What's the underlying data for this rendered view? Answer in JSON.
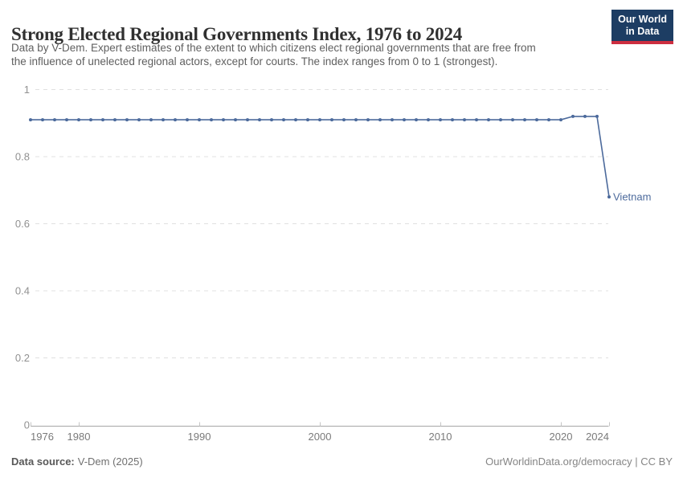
{
  "header": {
    "title": "Strong Elected Regional Governments Index, 1976 to 2024",
    "subtitle_line1": "Data by V-Dem. Expert estimates of the extent to which citizens elect regional governments that are free from",
    "subtitle_line2": "the influence of unelected regional actors, except for courts. The index ranges from 0 to 1 (strongest).",
    "logo_line1": "Our World",
    "logo_line2": "in Data"
  },
  "footer": {
    "source_label": "Data source:",
    "source_value": "V-Dem (2025)",
    "attribution": "OurWorldinData.org/democracy | CC BY"
  },
  "colors": {
    "series": "#4c6a9c",
    "grid": "#e0e0e0",
    "axis": "#a6a6a6",
    "tick": "#c6c6c6",
    "y_label": "#919191",
    "x_label": "#7a7a7a",
    "logo_bg": "#1d3d63",
    "logo_stripe": "#cd2e40"
  },
  "chart_data": {
    "type": "line",
    "title": "Strong Elected Regional Governments Index, 1976 to 2024",
    "xlabel": "",
    "ylabel": "",
    "xlim": [
      1976,
      2024
    ],
    "ylim": [
      0,
      1
    ],
    "yticks": [
      0,
      0.2,
      0.4,
      0.6,
      0.8,
      1
    ],
    "ytick_labels": [
      "0",
      "0.2",
      "0.4",
      "0.6",
      "0.8",
      "1"
    ],
    "xticks": [
      1976,
      1980,
      1990,
      2000,
      2010,
      2020,
      2024
    ],
    "grid": "horizontal-dashed",
    "legend_position": "end-of-line-label",
    "marker": "circle",
    "series": [
      {
        "name": "Vietnam",
        "color": "#4c6a9c",
        "x": [
          1976,
          1977,
          1978,
          1979,
          1980,
          1981,
          1982,
          1983,
          1984,
          1985,
          1986,
          1987,
          1988,
          1989,
          1990,
          1991,
          1992,
          1993,
          1994,
          1995,
          1996,
          1997,
          1998,
          1999,
          2000,
          2001,
          2002,
          2003,
          2004,
          2005,
          2006,
          2007,
          2008,
          2009,
          2010,
          2011,
          2012,
          2013,
          2014,
          2015,
          2016,
          2017,
          2018,
          2019,
          2020,
          2021,
          2022,
          2023,
          2024
        ],
        "values": [
          0.91,
          0.91,
          0.91,
          0.91,
          0.91,
          0.91,
          0.91,
          0.91,
          0.91,
          0.91,
          0.91,
          0.91,
          0.91,
          0.91,
          0.91,
          0.91,
          0.91,
          0.91,
          0.91,
          0.91,
          0.91,
          0.91,
          0.91,
          0.91,
          0.91,
          0.91,
          0.91,
          0.91,
          0.91,
          0.91,
          0.91,
          0.91,
          0.91,
          0.91,
          0.91,
          0.91,
          0.91,
          0.91,
          0.91,
          0.91,
          0.91,
          0.91,
          0.91,
          0.91,
          0.91,
          0.92,
          0.92,
          0.92,
          0.68
        ]
      }
    ]
  }
}
